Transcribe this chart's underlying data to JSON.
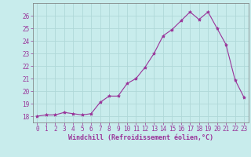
{
  "x": [
    0,
    1,
    2,
    3,
    4,
    5,
    6,
    7,
    8,
    9,
    10,
    11,
    12,
    13,
    14,
    15,
    16,
    17,
    18,
    19,
    20,
    21,
    22,
    23
  ],
  "y": [
    18.0,
    18.1,
    18.1,
    18.3,
    18.2,
    18.1,
    18.2,
    19.1,
    19.6,
    19.6,
    20.6,
    21.0,
    21.9,
    23.0,
    24.4,
    24.9,
    25.6,
    26.3,
    25.7,
    26.3,
    25.0,
    23.7,
    20.9,
    19.5
  ],
  "line_color": "#993399",
  "marker": "*",
  "marker_size": 3,
  "bg_color": "#c8ecec",
  "grid_color": "#b0d8d8",
  "xlabel": "Windchill (Refroidissement éolien,°C)",
  "xlabel_color": "#993399",
  "tick_color": "#993399",
  "ylim": [
    17.5,
    27.0
  ],
  "yticks": [
    18,
    19,
    20,
    21,
    22,
    23,
    24,
    25,
    26
  ],
  "xlim": [
    -0.5,
    23.5
  ],
  "xticks": [
    0,
    1,
    2,
    3,
    4,
    5,
    6,
    7,
    8,
    9,
    10,
    11,
    12,
    13,
    14,
    15,
    16,
    17,
    18,
    19,
    20,
    21,
    22,
    23
  ],
  "tick_fontsize": 5.5,
  "xlabel_fontsize": 6.0
}
